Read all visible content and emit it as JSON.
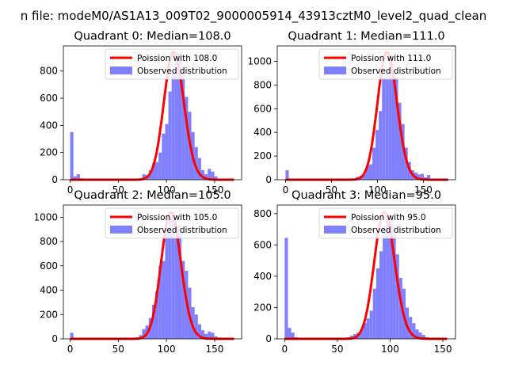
{
  "figure": {
    "suptitle": "n file: modeM0/AS1A13_009T02_9000005914_43913cztM0_level2_quad_clean"
  },
  "chart_data": [
    {
      "type": "bar",
      "title": "Quadrant 0: Median=108.0",
      "xlabel": "",
      "ylabel": "",
      "xlim": [
        -7,
        178
      ],
      "ylim": [
        0,
        985
      ],
      "xticks": [
        0,
        50,
        100,
        150
      ],
      "yticks": [
        0,
        200,
        400,
        600,
        800
      ],
      "legend": {
        "position": "top-right",
        "line_label": "Poission with 108.0",
        "bar_label": "Observed distribution"
      },
      "line_color": "#ff0000",
      "bar_color": "#8080ff",
      "poisson_mean": 108.0,
      "poisson_peak": 940,
      "hist_bin_width": 3.4,
      "histogram": [
        [
          0,
          350
        ],
        [
          3.4,
          25
        ],
        [
          6.8,
          40
        ],
        [
          10.2,
          10
        ],
        [
          13.6,
          6
        ],
        [
          17,
          4
        ],
        [
          20.4,
          3
        ],
        [
          23.8,
          3
        ],
        [
          27.2,
          2
        ],
        [
          30.6,
          2
        ],
        [
          34,
          2
        ],
        [
          37.4,
          2
        ],
        [
          40.8,
          2
        ],
        [
          44.2,
          2
        ],
        [
          47.6,
          2
        ],
        [
          51,
          2
        ],
        [
          54.4,
          2
        ],
        [
          57.8,
          2
        ],
        [
          61.2,
          3
        ],
        [
          64.6,
          3
        ],
        [
          68,
          5
        ],
        [
          71.4,
          5
        ],
        [
          74.8,
          40
        ],
        [
          78.2,
          35
        ],
        [
          81.6,
          70
        ],
        [
          85,
          120
        ],
        [
          88.4,
          130
        ],
        [
          91.8,
          200
        ],
        [
          95.2,
          340
        ],
        [
          98.6,
          410
        ],
        [
          102,
          650
        ],
        [
          105.4,
          800
        ],
        [
          108.8,
          930
        ],
        [
          112.2,
          920
        ],
        [
          115.6,
          840
        ],
        [
          119,
          610
        ],
        [
          122.4,
          500
        ],
        [
          125.8,
          350
        ],
        [
          129.2,
          240
        ],
        [
          132.6,
          160
        ],
        [
          136,
          70
        ],
        [
          139.4,
          40
        ],
        [
          142.8,
          80
        ],
        [
          146.2,
          60
        ],
        [
          149.6,
          25
        ],
        [
          153,
          5
        ],
        [
          156.4,
          3
        ],
        [
          159.8,
          2
        ],
        [
          163.2,
          2
        ]
      ]
    },
    {
      "type": "bar",
      "title": "Quadrant 1: Median=111.0",
      "xlabel": "",
      "ylabel": "",
      "xlim": [
        -9,
        185
      ],
      "ylim": [
        0,
        1130
      ],
      "xticks": [
        0,
        50,
        100,
        150
      ],
      "yticks": [
        0,
        200,
        400,
        600,
        800,
        1000
      ],
      "legend": {
        "position": "top-right",
        "line_label": "Poission with 111.0",
        "bar_label": "Observed distribution"
      },
      "line_color": "#ff0000",
      "bar_color": "#8080ff",
      "poisson_mean": 111.0,
      "poisson_peak": 1080,
      "hist_bin_width": 3.5,
      "histogram": [
        [
          0,
          80
        ],
        [
          3.5,
          10
        ],
        [
          7,
          4
        ],
        [
          10.5,
          3
        ],
        [
          14,
          2
        ],
        [
          17.5,
          2
        ],
        [
          21,
          2
        ],
        [
          24.5,
          2
        ],
        [
          28,
          2
        ],
        [
          31.5,
          2
        ],
        [
          35,
          2
        ],
        [
          38.5,
          2
        ],
        [
          42,
          2
        ],
        [
          45.5,
          2
        ],
        [
          49,
          2
        ],
        [
          52.5,
          2
        ],
        [
          56,
          2
        ],
        [
          59.5,
          2
        ],
        [
          63,
          2
        ],
        [
          66.5,
          3
        ],
        [
          70,
          4
        ],
        [
          73.5,
          8
        ],
        [
          77,
          25
        ],
        [
          80.5,
          35
        ],
        [
          84,
          50
        ],
        [
          87.5,
          120
        ],
        [
          91,
          130
        ],
        [
          94.5,
          270
        ],
        [
          98,
          420
        ],
        [
          101.5,
          580
        ],
        [
          105,
          870
        ],
        [
          108.5,
          900
        ],
        [
          112,
          1050
        ],
        [
          115.5,
          920
        ],
        [
          119,
          870
        ],
        [
          122.5,
          650
        ],
        [
          126,
          470
        ],
        [
          129.5,
          270
        ],
        [
          133,
          150
        ],
        [
          136.5,
          80
        ],
        [
          140,
          60
        ],
        [
          143.5,
          45
        ],
        [
          147,
          50
        ],
        [
          150.5,
          20
        ],
        [
          154,
          40
        ],
        [
          157.5,
          5
        ],
        [
          161,
          3
        ]
      ]
    },
    {
      "type": "bar",
      "title": "Quadrant 2: Median=105.0",
      "xlabel": "",
      "ylabel": "",
      "xlim": [
        -7,
        178
      ],
      "ylim": [
        0,
        1100
      ],
      "xticks": [
        0,
        50,
        100,
        150
      ],
      "yticks": [
        0,
        200,
        400,
        600,
        800,
        1000
      ],
      "legend": {
        "position": "top-right",
        "line_label": "Poission with 105.0",
        "bar_label": "Observed distribution"
      },
      "line_color": "#ff0000",
      "bar_color": "#8080ff",
      "poisson_mean": 105.0,
      "poisson_peak": 1040,
      "hist_bin_width": 3.4,
      "histogram": [
        [
          0,
          50
        ],
        [
          3.4,
          8
        ],
        [
          6.8,
          4
        ],
        [
          10.2,
          3
        ],
        [
          13.6,
          2
        ],
        [
          17,
          2
        ],
        [
          20.4,
          2
        ],
        [
          23.8,
          2
        ],
        [
          27.2,
          2
        ],
        [
          30.6,
          2
        ],
        [
          34,
          2
        ],
        [
          37.4,
          2
        ],
        [
          40.8,
          2
        ],
        [
          44.2,
          2
        ],
        [
          47.6,
          2
        ],
        [
          51,
          2
        ],
        [
          54.4,
          2
        ],
        [
          57.8,
          2
        ],
        [
          61.2,
          3
        ],
        [
          64.6,
          5
        ],
        [
          68,
          10
        ],
        [
          71.4,
          30
        ],
        [
          74.8,
          80
        ],
        [
          78.2,
          110
        ],
        [
          81.6,
          170
        ],
        [
          85,
          280
        ],
        [
          88.4,
          390
        ],
        [
          91.8,
          600
        ],
        [
          95.2,
          640
        ],
        [
          98.6,
          900
        ],
        [
          102,
          1000
        ],
        [
          105.4,
          1040
        ],
        [
          108.8,
          830
        ],
        [
          112.2,
          940
        ],
        [
          115.6,
          640
        ],
        [
          119,
          560
        ],
        [
          122.4,
          420
        ],
        [
          125.8,
          260
        ],
        [
          129.2,
          200
        ],
        [
          132.6,
          120
        ],
        [
          136,
          70
        ],
        [
          139.4,
          40
        ],
        [
          142.8,
          60
        ],
        [
          146.2,
          50
        ],
        [
          149.6,
          20
        ],
        [
          153,
          10
        ],
        [
          156.4,
          5
        ]
      ]
    },
    {
      "type": "bar",
      "title": "Quadrant 3: Median=95.0",
      "xlabel": "",
      "ylabel": "",
      "xlim": [
        -7,
        162
      ],
      "ylim": [
        0,
        855
      ],
      "xticks": [
        0,
        50,
        100,
        150
      ],
      "yticks": [
        0,
        200,
        400,
        600,
        800
      ],
      "legend": {
        "position": "top-right",
        "line_label": "Poission with 95.0",
        "bar_label": "Observed distribution"
      },
      "line_color": "#ff0000",
      "bar_color": "#8080ff",
      "poisson_mean": 95.0,
      "poisson_peak": 810,
      "hist_bin_width": 3.1,
      "histogram": [
        [
          0,
          645
        ],
        [
          3.1,
          70
        ],
        [
          6.2,
          40
        ],
        [
          9.3,
          10
        ],
        [
          12.4,
          6
        ],
        [
          15.5,
          4
        ],
        [
          18.6,
          3
        ],
        [
          21.7,
          3
        ],
        [
          24.8,
          2
        ],
        [
          27.9,
          2
        ],
        [
          31,
          2
        ],
        [
          34.1,
          2
        ],
        [
          37.2,
          2
        ],
        [
          40.3,
          2
        ],
        [
          43.4,
          2
        ],
        [
          46.5,
          2
        ],
        [
          49.6,
          3
        ],
        [
          52.7,
          5
        ],
        [
          55.8,
          8
        ],
        [
          58.9,
          10
        ],
        [
          62,
          20
        ],
        [
          65.1,
          30
        ],
        [
          68.2,
          40
        ],
        [
          71.3,
          60
        ],
        [
          74.4,
          100
        ],
        [
          77.5,
          130
        ],
        [
          80.6,
          180
        ],
        [
          83.7,
          320
        ],
        [
          86.8,
          450
        ],
        [
          89.9,
          560
        ],
        [
          93,
          720
        ],
        [
          96.1,
          800
        ],
        [
          99.2,
          770
        ],
        [
          102.3,
          730
        ],
        [
          105.4,
          540
        ],
        [
          108.5,
          390
        ],
        [
          111.6,
          320
        ],
        [
          114.7,
          200
        ],
        [
          117.8,
          140
        ],
        [
          120.9,
          100
        ],
        [
          124,
          60
        ],
        [
          127.1,
          40
        ],
        [
          130.2,
          25
        ],
        [
          133.3,
          10
        ],
        [
          136.4,
          5
        ]
      ]
    }
  ]
}
